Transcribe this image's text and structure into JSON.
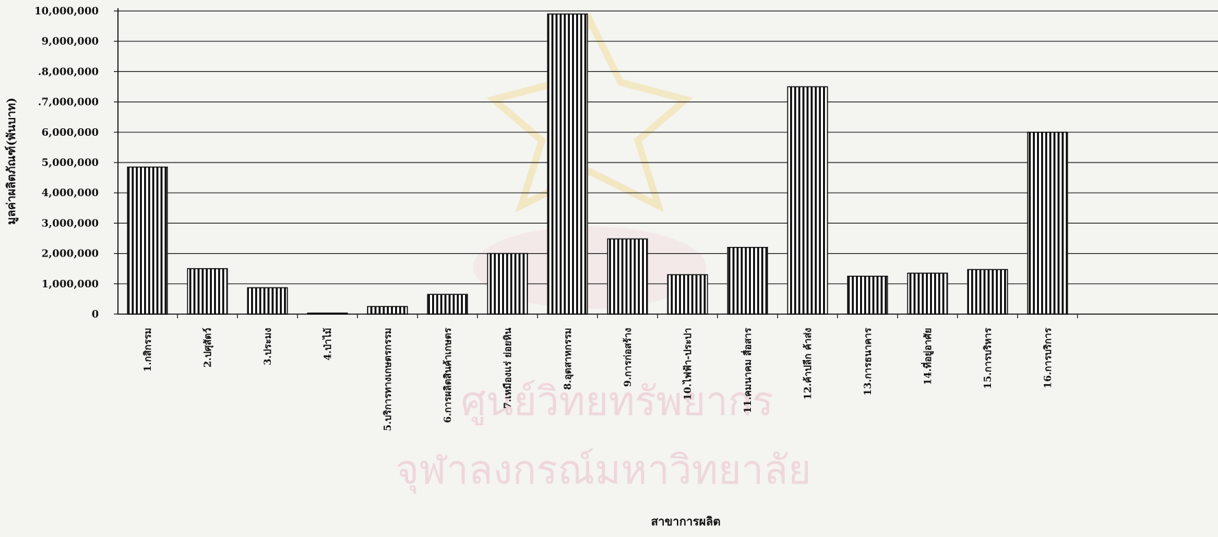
{
  "chart_data": {
    "type": "bar",
    "xlabel": "สาขาการผลิต",
    "ylabel": "มูลค่าผลิตภัณฑ์(พันบาท)",
    "ylim": [
      0,
      10000000
    ],
    "yticks": [
      0,
      1000000,
      2000000,
      3000000,
      4000000,
      5000000,
      6000000,
      7000000,
      8000000,
      9000000,
      10000000
    ],
    "ytick_labels": [
      "0",
      "1,000,000",
      "2,000,000",
      "3,000,000",
      "4,000,000",
      "5,000,000",
      "6,000,000",
      ".7,000,000",
      ".8,000,000",
      "9,000,000",
      "10,000,000"
    ],
    "grid": true,
    "legend": "none",
    "categories": [
      "1.กสิกรรม",
      "2.ปศุสัตว์",
      "3.ประมง",
      "4.ป่าไม้",
      "5.บริการทางเกษตรกรรม",
      "6.การผลิตสินค้าเกษตร",
      "7.เหมืองแร่ ย่อยหิน",
      "8.อุตสาหกรรม",
      "9.การก่อสร้าง",
      "10.ไฟฟ้า-ประปา",
      "11.คมนาคม สื่อสาร",
      "12.ค้าปลีก ค้าส่ง",
      "13.การธนาคาร",
      "14.ที่อยู่อาศัย",
      "15.การบริหาร",
      "16.การบริการ"
    ],
    "values": [
      4850000,
      1500000,
      870000,
      20000,
      250000,
      650000,
      2000000,
      9900000,
      2480000,
      1300000,
      2200000,
      7500000,
      1250000,
      1350000,
      1470000,
      6000000
    ]
  },
  "watermark": {
    "line1": "ศูนย์วิทยทรัพยากร",
    "line2": "จุฬาลงกรณ์มหาวิทยาลัย"
  },
  "colors": {
    "bar_fill": "#ffffff",
    "bar_stripe": "#1a1a1a",
    "grid": "#222222",
    "watermark": "#e8b6c2"
  }
}
